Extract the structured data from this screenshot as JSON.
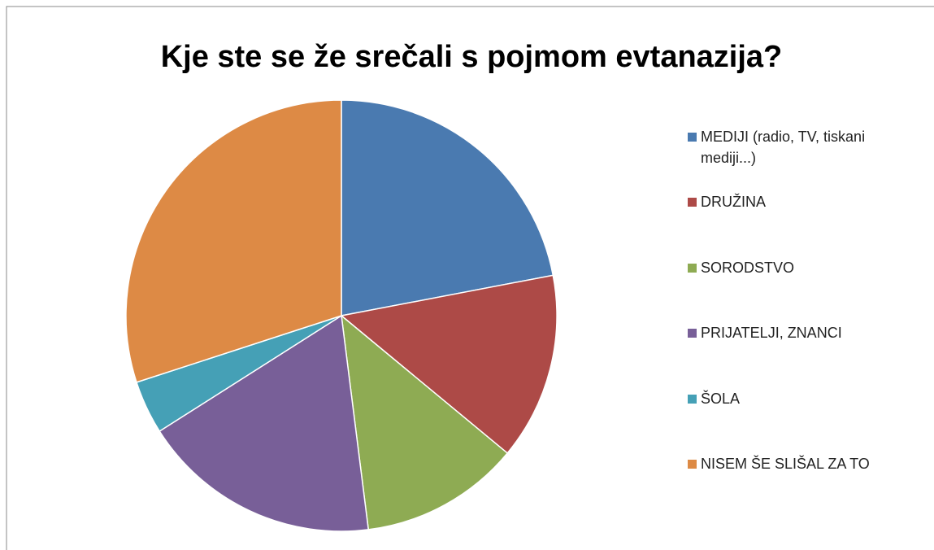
{
  "chart_data": {
    "type": "pie",
    "title": "Kje ste se že srečali s pojmom evtanazija?",
    "categories": [
      "MEDIJI (radio, TV, tiskani mediji...)",
      "DRUŽINA",
      "SORODSTVO",
      "PRIJATELJI, ZNANCI",
      "ŠOLA",
      "NISEM ŠE SLIŠAL ZA TO"
    ],
    "values": [
      22,
      14,
      12,
      18,
      4,
      30
    ],
    "colors": [
      "#4a7ab0",
      "#ad4a47",
      "#8eab53",
      "#785f98",
      "#45a0b6",
      "#dd8a45"
    ],
    "legend": "right"
  }
}
